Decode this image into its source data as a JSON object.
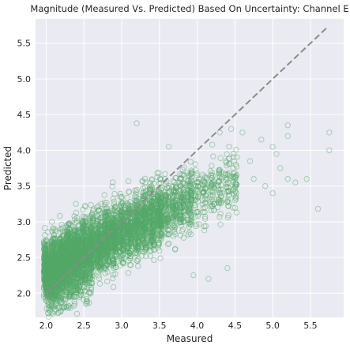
{
  "chart_data": {
    "type": "scatter",
    "title": "Magnitude (Measured Vs. Predicted) Based On Uncertainty: Channel E",
    "xlabel": "Measured",
    "ylabel": "Predicted",
    "xlim": [
      1.86,
      5.94
    ],
    "ylim": [
      1.66,
      5.84
    ],
    "x_ticks": [
      "2.0",
      "2.5",
      "3.0",
      "3.5",
      "4.0",
      "4.5",
      "5.0",
      "5.5"
    ],
    "y_ticks": [
      "2.0",
      "2.5",
      "3.0",
      "3.5",
      "4.0",
      "4.5",
      "5.0",
      "5.5"
    ],
    "grid": true,
    "legend": "none",
    "colors": {
      "background": "#eaeaf2",
      "grid": "#ffffff",
      "marker": "#55a868",
      "identity_line": "#8c8c8c"
    },
    "series": [
      {
        "marker": "open-circle",
        "approx_point_count": 5000,
        "dense_band": {
          "note_range_x": [
            2.0,
            3.8
          ],
          "columns_x": [
            2.0,
            2.1,
            2.2,
            2.3,
            2.4,
            2.5,
            2.6,
            2.7,
            2.8,
            2.9,
            3.0,
            3.1,
            3.2,
            3.3,
            3.4,
            3.5,
            3.6,
            3.7,
            3.8,
            3.9,
            4.0,
            4.1,
            4.2,
            4.3,
            4.4,
            4.5
          ],
          "columns_center_y": [
            2.35,
            2.4,
            2.45,
            2.5,
            2.55,
            2.6,
            2.65,
            2.7,
            2.75,
            2.8,
            2.85,
            2.9,
            2.95,
            3.0,
            3.05,
            3.1,
            3.15,
            3.2,
            3.25,
            3.3,
            3.35,
            3.4,
            3.45,
            3.5,
            3.55,
            3.6
          ],
          "columns_spread_y": [
            0.35,
            0.4,
            0.4,
            0.42,
            0.42,
            0.42,
            0.42,
            0.42,
            0.42,
            0.42,
            0.42,
            0.42,
            0.42,
            0.42,
            0.42,
            0.42,
            0.42,
            0.42,
            0.42,
            0.42,
            0.42,
            0.42,
            0.42,
            0.42,
            0.42,
            0.42
          ]
        },
        "outliers": [
          {
            "x": 3.2,
            "y": 4.38
          },
          {
            "x": 4.2,
            "y": 4.08
          },
          {
            "x": 4.3,
            "y": 4.25
          },
          {
            "x": 4.45,
            "y": 4.3
          },
          {
            "x": 4.6,
            "y": 4.25
          },
          {
            "x": 4.85,
            "y": 4.15
          },
          {
            "x": 5.0,
            "y": 4.05
          },
          {
            "x": 5.05,
            "y": 3.95
          },
          {
            "x": 5.2,
            "y": 4.35
          },
          {
            "x": 5.2,
            "y": 4.2
          },
          {
            "x": 5.2,
            "y": 3.6
          },
          {
            "x": 5.3,
            "y": 3.55
          },
          {
            "x": 5.75,
            "y": 4.25
          },
          {
            "x": 5.75,
            "y": 4.0
          },
          {
            "x": 5.6,
            "y": 3.18
          },
          {
            "x": 4.9,
            "y": 3.5
          },
          {
            "x": 5.0,
            "y": 3.4
          },
          {
            "x": 4.5,
            "y": 3.3
          },
          {
            "x": 3.95,
            "y": 2.25
          },
          {
            "x": 4.15,
            "y": 2.2
          },
          {
            "x": 4.4,
            "y": 2.35
          },
          {
            "x": 2.05,
            "y": 1.75
          },
          {
            "x": 2.1,
            "y": 1.82
          },
          {
            "x": 4.7,
            "y": 3.85
          },
          {
            "x": 4.75,
            "y": 3.6
          },
          {
            "x": 5.1,
            "y": 3.75
          },
          {
            "x": 5.45,
            "y": 3.6
          }
        ]
      }
    ],
    "identity_line": {
      "from": [
        2.0,
        2.0
      ],
      "to": [
        5.72,
        5.72
      ],
      "style": "dashed"
    }
  }
}
